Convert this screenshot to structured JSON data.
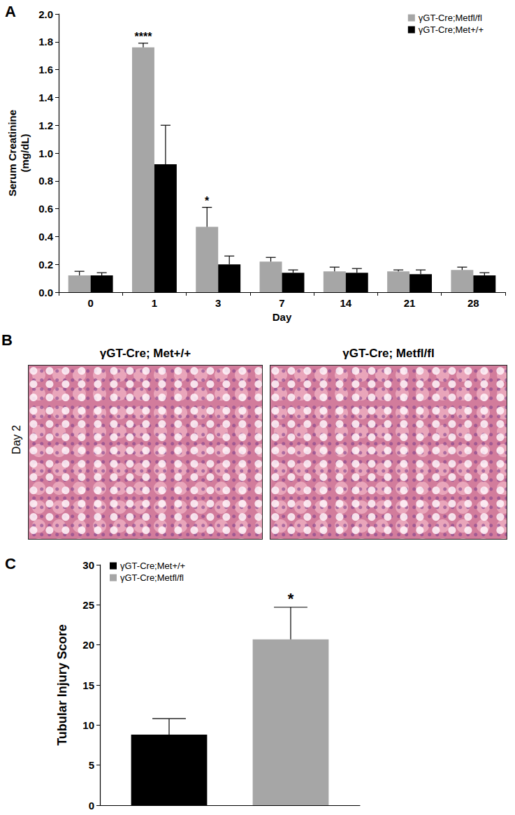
{
  "chart_data": [
    {
      "type": "bar",
      "label": "A",
      "categories": [
        "0",
        "1",
        "3",
        "7",
        "14",
        "21",
        "28"
      ],
      "x_label": "Day",
      "y_label": "Serum Creatinine\n(mg/dL)",
      "series": [
        {
          "name": "γGT-Cre;Metfl/fl",
          "color": "#a6a6a6",
          "values": [
            0.12,
            1.76,
            0.47,
            0.22,
            0.15,
            0.15,
            0.16
          ],
          "errors": [
            0.03,
            0.03,
            0.14,
            0.03,
            0.03,
            0.01,
            0.02
          ]
        },
        {
          "name": "γGT-Cre;Met+/+",
          "color": "#000000",
          "values": [
            0.12,
            0.92,
            0.2,
            0.14,
            0.14,
            0.13,
            0.12
          ],
          "errors": [
            0.02,
            0.28,
            0.06,
            0.02,
            0.03,
            0.03,
            0.02
          ]
        }
      ],
      "annotations": [
        {
          "text": "****",
          "category": "1",
          "series": "γGT-Cre;Metfl/fl"
        },
        {
          "text": "*",
          "category": "3",
          "series": "γGT-Cre;Metfl/fl"
        }
      ],
      "ylim": [
        0,
        2
      ],
      "yticks": [
        {
          "value": 0,
          "label": "0.0"
        },
        0.2,
        0.4,
        0.6,
        0.8,
        {
          "value": 1,
          "label": "1.0"
        },
        1.2,
        1.4,
        1.6,
        1.8,
        {
          "value": 2,
          "label": "2.0"
        }
      ],
      "legend": "upper right",
      "grid": false
    },
    {
      "type": "bar",
      "label": "C",
      "categories": [
        null
      ],
      "y_label": "Tubular Injury Score",
      "series": [
        {
          "name": "γGT-Cre;Met+/+",
          "color": "#000000",
          "values": [
            8.8
          ],
          "errors": [
            2.0
          ]
        },
        {
          "name": "γGT-Cre;Metfl/fl",
          "color": "#a6a6a6",
          "values": [
            20.7
          ],
          "errors": [
            4.0
          ]
        }
      ],
      "annotations": [
        {
          "text": "*",
          "category": null,
          "series": "γGT-Cre;Metfl/fl"
        }
      ],
      "ylim": [
        0,
        30
      ],
      "yticks": [
        0,
        5,
        10,
        15,
        20,
        25,
        30
      ],
      "legend": "upper left",
      "tick_labels": "y",
      "grid": false
    }
  ],
  "panel_b": {
    "label": "B",
    "row_label": "Day 2",
    "images": [
      {
        "title": "γGT-Cre; Met+/+"
      },
      {
        "title": "γGT-Cre; Metfl/fl"
      }
    ]
  }
}
